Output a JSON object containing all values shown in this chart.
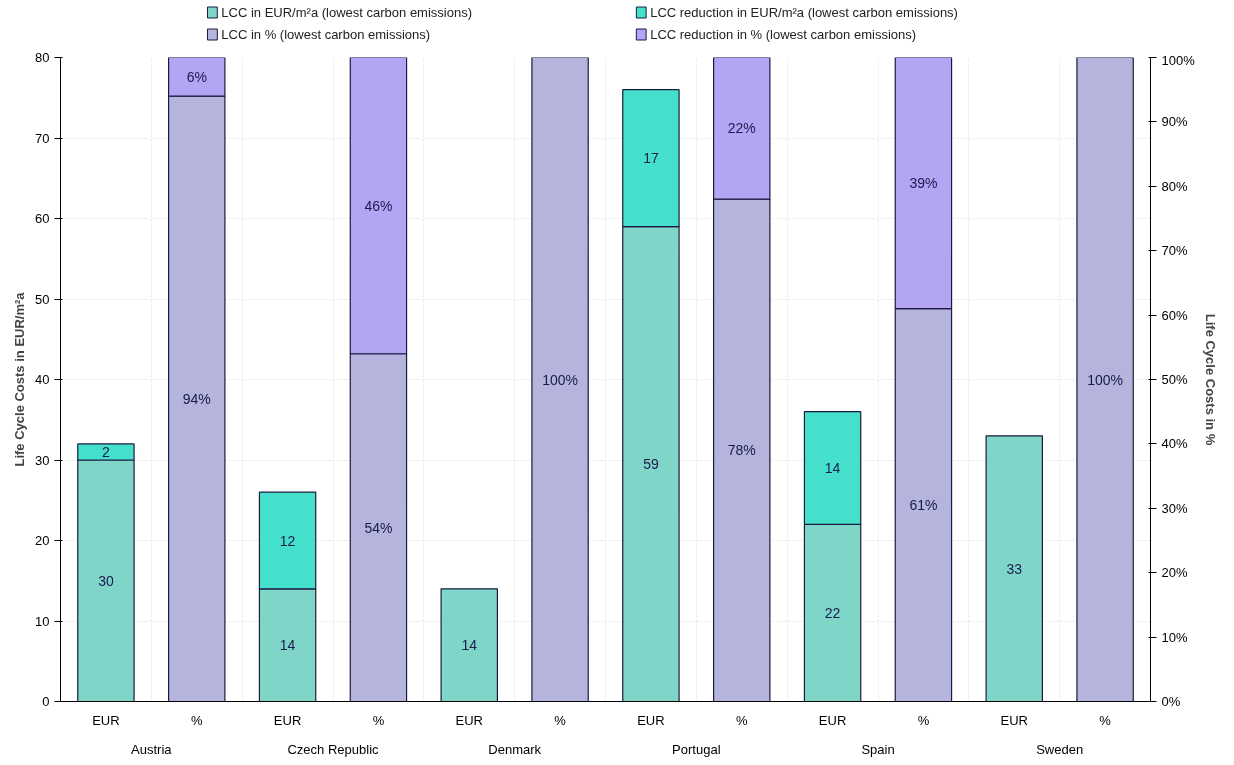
{
  "chart_data": {
    "type": "bar",
    "stacked": true,
    "ylabel": "Life Cycle Costs in EUR/m²a",
    "y2label": "Life Cycle Costs in %",
    "categories": [
      "EUR",
      "%",
      "EUR",
      "%",
      "EUR",
      "%",
      "EUR",
      "%",
      "EUR",
      "%",
      "EUR",
      "%"
    ],
    "annotations": [
      "Austria",
      "Czech Republic",
      "Denmark",
      "Portugal",
      "Spain",
      "Sweden"
    ],
    "series": [
      {
        "name": "LCC in EUR/m²a (lowest carbon emissions)",
        "color": "#7fd6c8",
        "values": [
          30,
          null,
          14,
          null,
          14,
          null,
          59,
          null,
          22,
          null,
          33,
          null
        ],
        "value_labels": [
          "30",
          null,
          "14",
          null,
          "14",
          null,
          "59",
          null,
          "22",
          null,
          "33",
          null
        ]
      },
      {
        "name": "LCC reduction in EUR/m²a (lowest carbon emissions)",
        "color": "#44e0cc",
        "values": [
          2,
          null,
          12,
          null,
          null,
          null,
          17,
          null,
          14,
          null,
          null,
          null
        ],
        "value_labels": [
          "2",
          null,
          "12",
          null,
          null,
          null,
          "17",
          null,
          "14",
          null,
          null,
          null
        ]
      },
      {
        "name": "LCC in % (lowest carbon emissions)",
        "color": "#b4b4dc",
        "axis": "y2",
        "values": [
          null,
          94,
          null,
          54,
          null,
          100,
          null,
          78,
          null,
          61,
          null,
          100
        ],
        "value_labels": [
          null,
          "94%",
          null,
          "54%",
          null,
          "100%",
          null,
          "78%",
          null,
          "61%",
          null,
          "100%"
        ]
      },
      {
        "name": "LCC reduction in % (lowest carbon emissions)",
        "color": "#b4a4f4",
        "axis": "y2",
        "values": [
          null,
          6,
          null,
          46,
          null,
          null,
          null,
          22,
          null,
          39,
          null,
          null
        ],
        "value_labels": [
          null,
          "6%",
          null,
          "46%",
          null,
          null,
          null,
          "22%",
          null,
          "39%",
          null,
          null
        ]
      }
    ],
    "ylim": [
      0,
      80
    ],
    "yticks": [
      0,
      10,
      20,
      30,
      40,
      50,
      60,
      70,
      80
    ],
    "y2lim": [
      0,
      100
    ],
    "y2ticks": [
      {
        "value": 0,
        "label": "0%"
      },
      {
        "value": 10,
        "label": "10%"
      },
      {
        "value": 20,
        "label": "20%"
      },
      {
        "value": 30,
        "label": "30%"
      },
      {
        "value": 40,
        "label": "40%"
      },
      {
        "value": 50,
        "label": "50%"
      },
      {
        "value": 60,
        "label": "60%"
      },
      {
        "value": 70,
        "label": "70%"
      },
      {
        "value": 80,
        "label": "80%"
      },
      {
        "value": 90,
        "label": "90%"
      },
      {
        "value": 100,
        "label": "100%"
      }
    ],
    "grid": true,
    "legend": "top"
  }
}
